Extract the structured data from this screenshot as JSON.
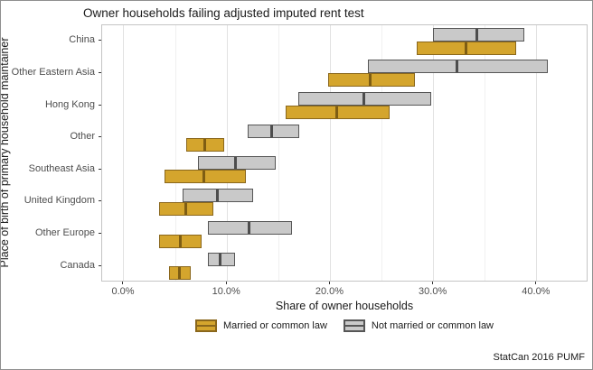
{
  "chart_data": {
    "type": "crossbar",
    "title": "Owner households failing adjusted imputed rent test",
    "xlabel": "Share of owner households",
    "ylabel": "Place of birth of primary household maintainer",
    "caption": "StatCan 2016 PUMF",
    "categories": [
      "China",
      "Other Eastern Asia",
      "Hong Kong",
      "Other",
      "Southeast Asia",
      "United Kingdom",
      "Other Europe",
      "Canada"
    ],
    "x_ticks": [
      {
        "value": 0,
        "label": "0.0%"
      },
      {
        "value": 10,
        "label": "10.0%"
      },
      {
        "value": 20,
        "label": "20.0%"
      },
      {
        "value": 30,
        "label": "30.0%"
      },
      {
        "value": 40,
        "label": "40.0%"
      }
    ],
    "x_minor_ticks": [
      5,
      15,
      25,
      35
    ],
    "xlim": [
      -2.1,
      45.0
    ],
    "grid": true,
    "legend_position": "bottom",
    "series": [
      {
        "name": "Married or common law",
        "key": "married",
        "fill": "#D4A52D",
        "stroke": "#8A671C",
        "midline": "#7E5D13",
        "values": [
          {
            "min": 28.4,
            "mid": 33.2,
            "max": 38.0
          },
          {
            "min": 19.8,
            "mid": 23.9,
            "max": 28.2
          },
          {
            "min": 15.7,
            "mid": 20.7,
            "max": 25.7
          },
          {
            "min": 6.0,
            "mid": 7.9,
            "max": 9.7
          },
          {
            "min": 3.9,
            "mid": 7.8,
            "max": 11.8
          },
          {
            "min": 3.4,
            "mid": 6.0,
            "max": 8.7
          },
          {
            "min": 3.4,
            "mid": 5.5,
            "max": 7.5
          },
          {
            "min": 4.4,
            "mid": 5.4,
            "max": 6.5
          }
        ]
      },
      {
        "name": "Not married or common law",
        "key": "not-married",
        "fill": "#C9C9C9",
        "stroke": "#565656",
        "midline": "#4D4D4D",
        "values": [
          {
            "min": 29.9,
            "mid": 34.2,
            "max": 38.8
          },
          {
            "min": 23.6,
            "mid": 32.3,
            "max": 41.1
          },
          {
            "min": 16.9,
            "mid": 23.3,
            "max": 29.8
          },
          {
            "min": 12.0,
            "mid": 14.4,
            "max": 17.0
          },
          {
            "min": 7.2,
            "mid": 10.9,
            "max": 14.7
          },
          {
            "min": 5.7,
            "mid": 9.1,
            "max": 12.5
          },
          {
            "min": 8.1,
            "mid": 12.2,
            "max": 16.3
          },
          {
            "min": 8.1,
            "mid": 9.4,
            "max": 10.8
          }
        ]
      }
    ]
  }
}
